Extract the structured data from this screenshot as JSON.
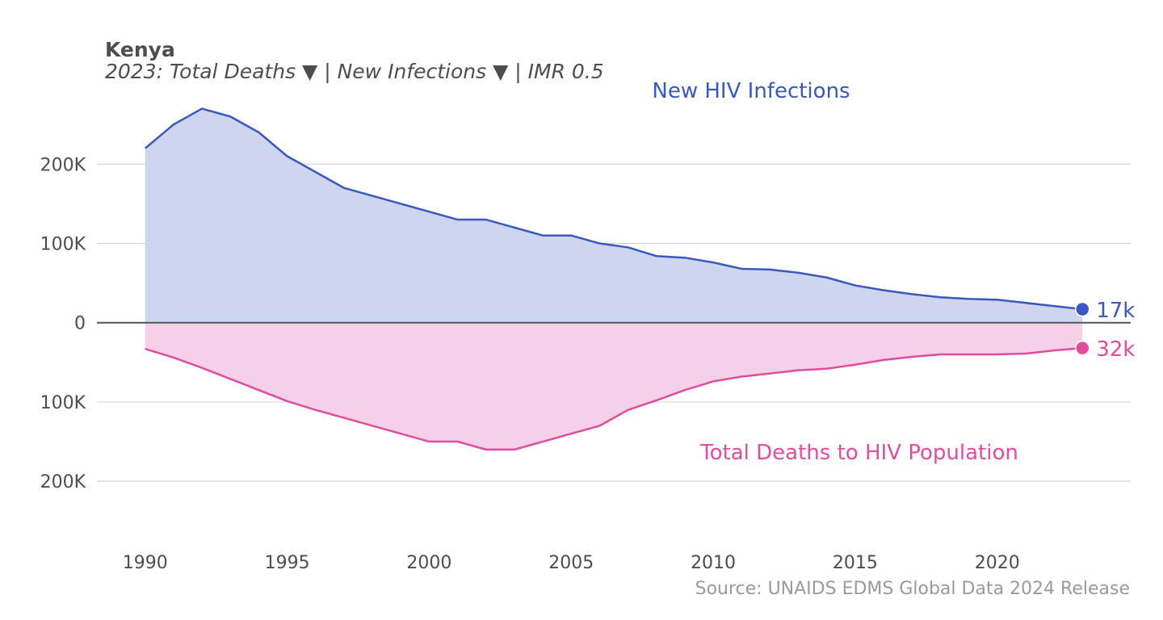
{
  "header": {
    "title": "Kenya",
    "subtitle": "2023: Total Deaths ▼ | New Infections ▼  | IMR 0.5"
  },
  "source": "Source: UNAIDS EDMS Global Data 2024 Release",
  "colors": {
    "infections_line": "#3a58bf",
    "infections_fill": "#ced5ef",
    "deaths_line": "#e04c9e",
    "deaths_fill": "#f6d0e6",
    "grid": "#d4d4d4",
    "zero_line": "#555555",
    "text": "#4d4d4d",
    "source": "#9a9a9a"
  },
  "chart_data": {
    "type": "area",
    "title": "Kenya",
    "subtitle": "2023: Total Deaths ▼ | New Infections ▼  | IMR 0.5",
    "xlabel": "",
    "ylabel": "",
    "xlim": [
      1988.3,
      2024.7
    ],
    "ylim": [
      -265000,
      295000
    ],
    "grid": true,
    "x": [
      1990,
      1991,
      1992,
      1993,
      1994,
      1995,
      1996,
      1997,
      1998,
      1999,
      2000,
      2001,
      2002,
      2003,
      2004,
      2005,
      2006,
      2007,
      2008,
      2009,
      2010,
      2011,
      2012,
      2013,
      2014,
      2015,
      2016,
      2017,
      2018,
      2019,
      2020,
      2021,
      2022,
      2023
    ],
    "x_ticks": [
      1990,
      1995,
      2000,
      2005,
      2010,
      2015,
      2020
    ],
    "x_tick_labels": [
      "1990",
      "1995",
      "2000",
      "2005",
      "2010",
      "2015",
      "2020"
    ],
    "y_ticks": [
      200000,
      100000,
      0,
      -100000,
      -200000
    ],
    "y_tick_labels": [
      "200K",
      "100K",
      "0",
      "100K",
      "200K"
    ],
    "series": [
      {
        "name": "New HIV Infections",
        "direction": "up",
        "values": [
          220000,
          250000,
          270000,
          260000,
          240000,
          210000,
          190000,
          170000,
          160000,
          150000,
          140000,
          130000,
          130000,
          120000,
          110000,
          110000,
          100000,
          95000,
          84000,
          82000,
          76000,
          68000,
          67000,
          63000,
          57000,
          47000,
          41000,
          36000,
          32000,
          30000,
          29000,
          25000,
          21000,
          17000
        ],
        "end_label": "17k"
      },
      {
        "name": "Total Deaths to HIV Population",
        "direction": "down",
        "values": [
          33000,
          44000,
          57000,
          71000,
          85000,
          99000,
          110000,
          120000,
          130000,
          140000,
          150000,
          150000,
          160000,
          160000,
          150000,
          140000,
          130000,
          110000,
          98000,
          85000,
          74000,
          68000,
          64000,
          60000,
          58000,
          53000,
          47000,
          43000,
          40000,
          40000,
          40000,
          39000,
          35000,
          32000
        ],
        "end_label": "32k"
      }
    ]
  }
}
